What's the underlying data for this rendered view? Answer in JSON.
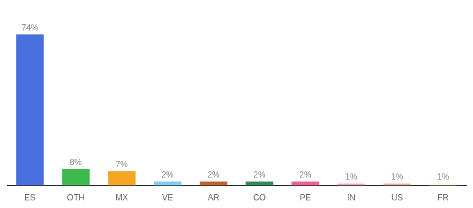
{
  "chart_data": {
    "type": "bar",
    "categories": [
      "ES",
      "OTH",
      "MX",
      "VE",
      "AR",
      "CO",
      "PE",
      "IN",
      "US",
      "FR"
    ],
    "values": [
      74,
      8,
      7,
      2,
      2,
      2,
      2,
      1,
      1,
      1
    ],
    "value_labels": [
      "74%",
      "8%",
      "7%",
      "2%",
      "2%",
      "2%",
      "2%",
      "1%",
      "1%",
      "1%"
    ],
    "colors": [
      "#4a6fdf",
      "#3dba4e",
      "#f5a623",
      "#7ecef4",
      "#c0622b",
      "#2e8b57",
      "#f06090",
      "#f8a0aa",
      "#e8a898",
      "#f5f0d0"
    ],
    "ylim": [
      0,
      84
    ],
    "grid": false,
    "data_labels": true,
    "tick_labels": "x"
  }
}
